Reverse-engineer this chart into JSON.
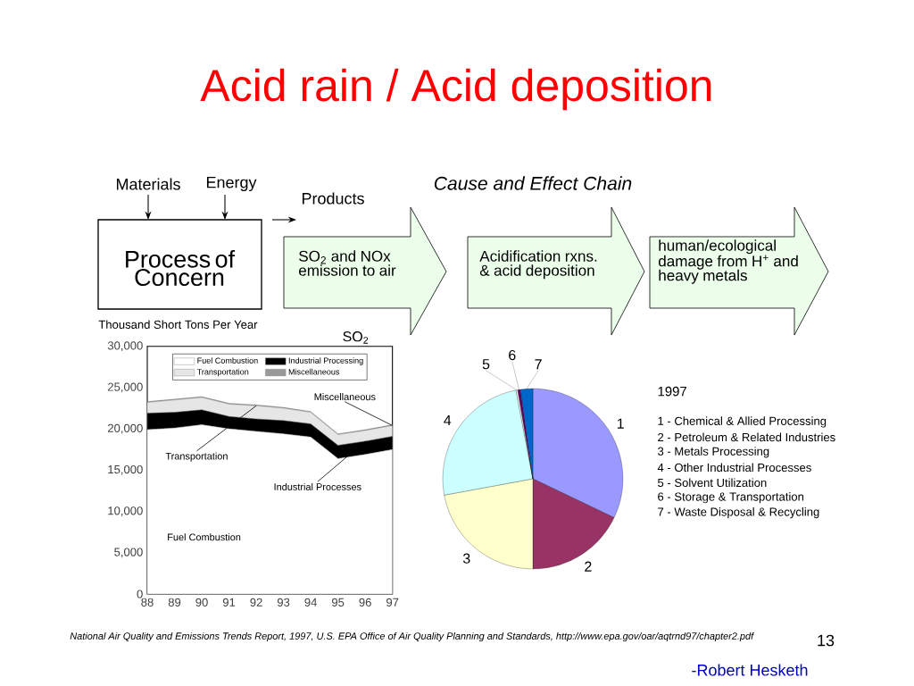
{
  "chart_data": [
    {
      "type": "other",
      "title": "Acid rain / Acid deposition",
      "annotations": [
        "Materials",
        "Energy",
        "Products",
        "Cause and Effect Chain",
        "Process of Concern",
        "SO$_{2}$ and NOx emission to air",
        "Acidification rxns. & acid deposition",
        "human/ecological damage from H$^{+}$ and heavy metals",
        "National Air Quality and Emissions Trends Report, 1997, U.S. EPA Office of Air Quality Planning and Standards, http://www.epa.gov/oar/aqtrnd97/chapter2.pdf",
        "13",
        "-Robert Hesketh"
      ]
    },
    {
      "type": "area",
      "stacked": true,
      "title": "SO$_{2}$",
      "ylabel": "Thousand Short Tons Per Year",
      "categories": [
        "88",
        "89",
        "90",
        "91",
        "92",
        "93",
        "94",
        "95",
        "96",
        "97"
      ],
      "series": [
        {
          "name": "Fuel Combustion",
          "color": "#ffffff",
          "values": [
            19900,
            20100,
            20500,
            20000,
            19700,
            19400,
            19000,
            16400,
            16900,
            17500
          ]
        },
        {
          "name": "Industrial Processing",
          "color": "#000000",
          "values": [
            2000,
            1900,
            1800,
            1500,
            1500,
            1600,
            1600,
            1600,
            1600,
            1600
          ]
        },
        {
          "name": "Transportation",
          "color": "#e6e6e6",
          "values": [
            1300,
            1500,
            1500,
            1500,
            1600,
            1500,
            1400,
            1300,
            1300,
            1300
          ]
        },
        {
          "name": "Miscellaneous",
          "color": "#999999",
          "values": [
            100,
            100,
            100,
            100,
            100,
            100,
            100,
            100,
            100,
            100
          ]
        }
      ],
      "ylim": [
        0,
        30000
      ],
      "yticks": [
        0,
        {
          "value": 5000,
          "label": "5,000"
        },
        {
          "value": 10000,
          "label": "10,000"
        },
        {
          "value": 15000,
          "label": "15,000"
        },
        {
          "value": 20000,
          "label": "20,000"
        },
        {
          "value": 25000,
          "label": "25,000"
        },
        {
          "value": 30000,
          "label": "30,000"
        }
      ],
      "legend": "top",
      "annotations": [
        {
          "text": "Miscellaneous",
          "x": "97",
          "y": 20400
        },
        {
          "text": "Transportation",
          "x": "92",
          "y": 22800
        },
        {
          "text": "Industrial Processes",
          "x": "96",
          "y": 18500
        },
        "Fuel Combustion"
      ]
    },
    {
      "type": "pie",
      "legend_title": "1997",
      "categories": [
        "1",
        "2",
        "3",
        "4",
        "5",
        "6",
        "7"
      ],
      "values": [
        32.1,
        17.9,
        22.1,
        24.9,
        0.3,
        0.5,
        2.2
      ],
      "colors": [
        "#9999ff",
        "#993366",
        "#ffffcc",
        "#ccffff",
        "#ffffff",
        "#660066",
        "#0066cc"
      ],
      "annotations": [
        "1 - Chemical & Allied Processing",
        "2 - Petroleum & Related Industries",
        "3 - Metals Processing",
        "4 - Other Industrial Processes",
        "5 - Solvent Utilization",
        "6 - Storage & Transportation",
        "7 - Waste Disposal & Recycling"
      ]
    }
  ]
}
